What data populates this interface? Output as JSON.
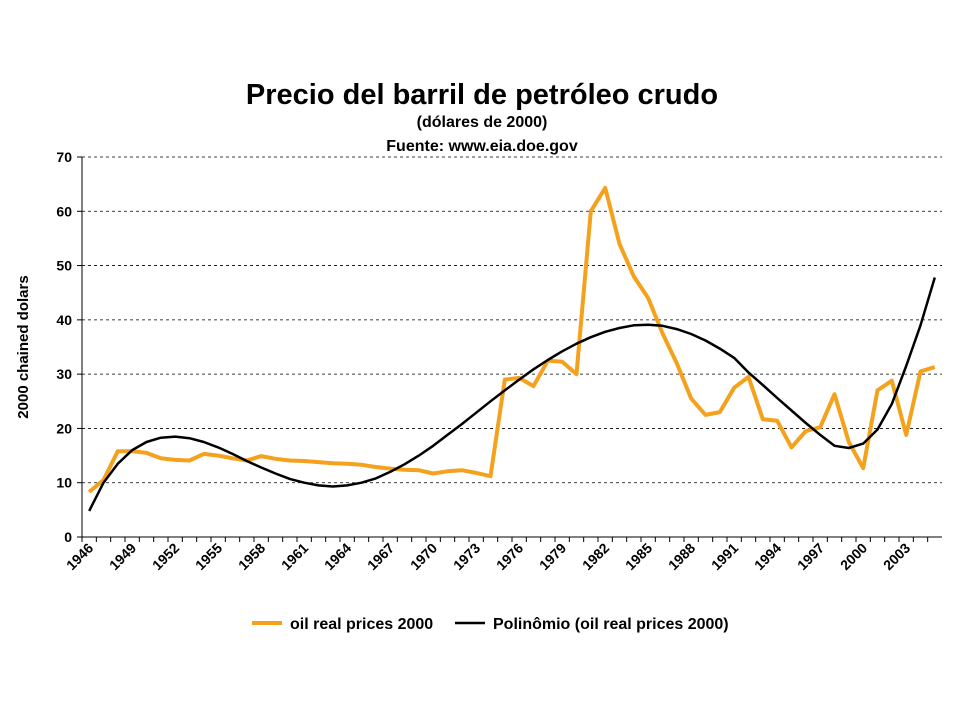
{
  "chart_data": {
    "type": "line",
    "title": "Precio del barril de petróleo crudo",
    "subtitle": "(dólares de 2000)",
    "source": "Fuente: www.eia.doe.gov",
    "y_label": "2000 chained dolars",
    "categories": [
      "1946",
      null,
      null,
      "1949",
      null,
      null,
      "1952",
      null,
      null,
      "1955",
      null,
      null,
      "1958",
      null,
      null,
      "1961",
      null,
      null,
      "1964",
      null,
      null,
      "1967",
      null,
      null,
      "1970",
      null,
      null,
      "1973",
      null,
      null,
      "1976",
      null,
      null,
      "1979",
      null,
      null,
      "1982",
      null,
      null,
      "1985",
      null,
      null,
      "1988",
      null,
      null,
      "1991",
      null,
      null,
      "1994",
      null,
      null,
      "1997",
      null,
      null,
      "2000",
      null,
      null,
      "2003",
      null,
      null
    ],
    "series": [
      {
        "name": "oil real prices 2000",
        "color": "#f4a11d",
        "values": [
          8.3,
          10.5,
          15.8,
          15.8,
          15.5,
          14.5,
          14.2,
          14.1,
          15.3,
          15.0,
          14.5,
          14.1,
          14.9,
          14.4,
          14.1,
          14.0,
          13.8,
          13.6,
          13.5,
          13.3,
          12.9,
          12.6,
          12.4,
          12.3,
          11.7,
          12.1,
          12.3,
          11.8,
          11.2,
          29.0,
          29.3,
          27.8,
          32.5,
          32.3,
          30.0,
          60.0,
          64.3,
          54.0,
          48.0,
          44.0,
          37.5,
          32.0,
          25.5,
          22.5,
          23.0,
          27.5,
          29.5,
          21.7,
          21.4,
          16.5,
          19.5,
          20.2,
          26.3,
          17.5,
          12.7,
          27.0,
          28.8,
          18.8,
          30.5,
          31.3
        ]
      },
      {
        "name": "Polinômio (oil real prices 2000)",
        "color": "#000000",
        "values": [
          4.8,
          10.0,
          13.5,
          16.0,
          17.5,
          18.3,
          18.5,
          18.2,
          17.5,
          16.5,
          15.3,
          14.0,
          12.8,
          11.7,
          10.7,
          10.0,
          9.5,
          9.3,
          9.5,
          10.0,
          10.8,
          12.0,
          13.4,
          15.0,
          16.8,
          18.8,
          20.8,
          22.9,
          25.0,
          27.0,
          29.0,
          30.9,
          32.6,
          34.2,
          35.6,
          36.8,
          37.8,
          38.5,
          39.0,
          39.1,
          38.9,
          38.3,
          37.4,
          36.2,
          34.7,
          33.0,
          30.3,
          28.0,
          25.6,
          23.3,
          21.0,
          18.8,
          16.8,
          16.4,
          17.2,
          19.8,
          24.5,
          31.5,
          39.0,
          47.8
        ]
      }
    ],
    "ylim": [
      0,
      70
    ],
    "yticks": [
      0,
      10,
      20,
      30,
      40,
      50,
      60,
      70
    ],
    "grid": true,
    "legend": "bottom"
  }
}
